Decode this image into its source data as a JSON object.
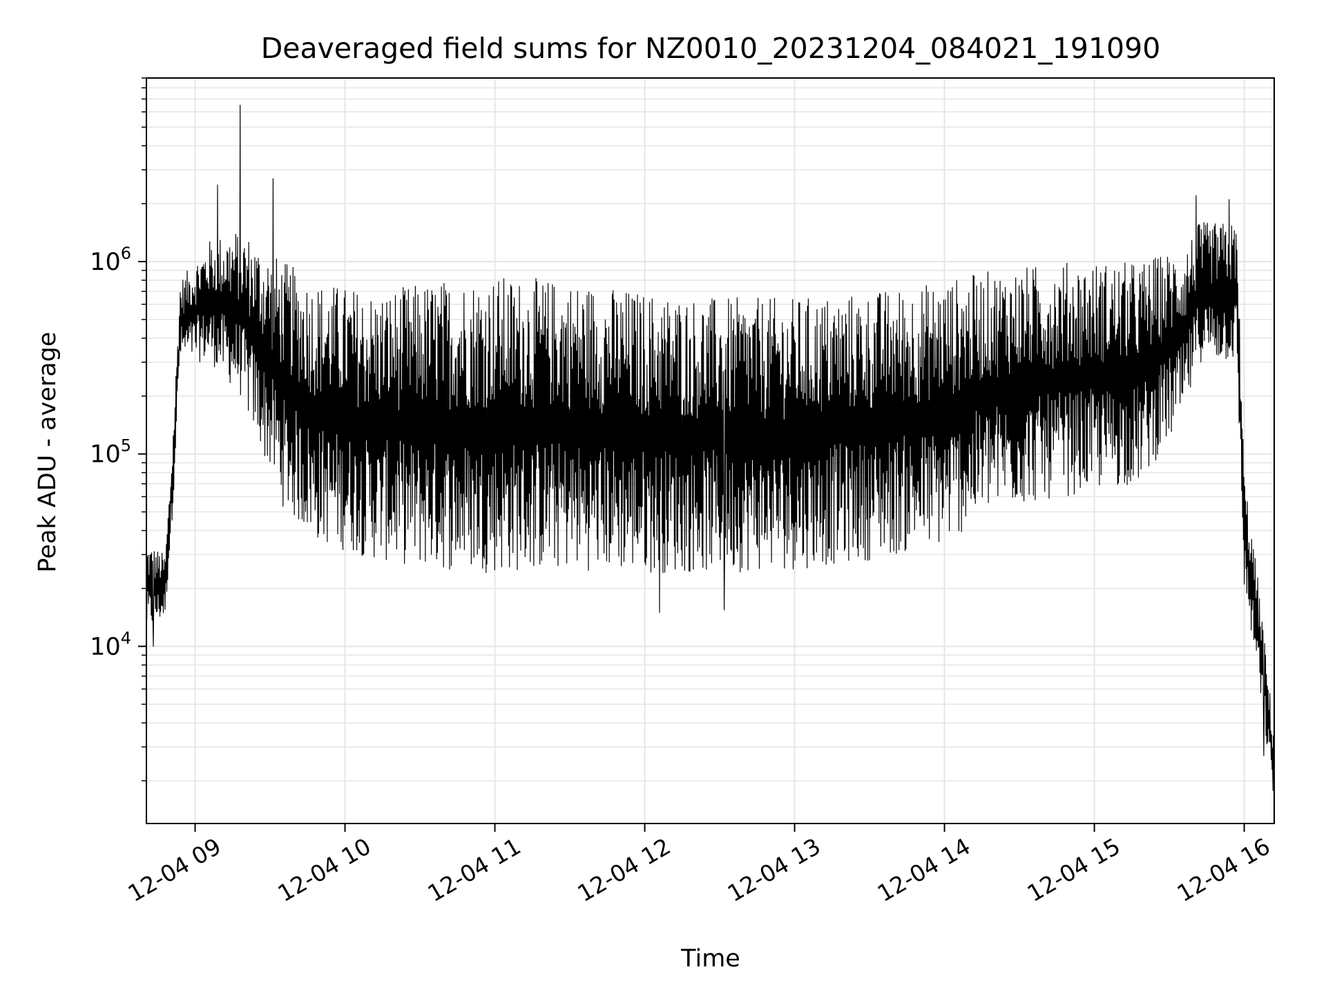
{
  "chart_data": {
    "type": "line",
    "title": "Deaveraged field sums for NZ0010_20231204_084021_191090",
    "xlabel": "Time",
    "ylabel": "Peak ADU - average",
    "x_ticks": [
      "12-04 09",
      "12-04 10",
      "12-04 11",
      "12-04 12",
      "12-04 13",
      "12-04 14",
      "12-04 15",
      "12-04 16"
    ],
    "x_tick_hours": [
      9,
      10,
      11,
      12,
      13,
      14,
      15,
      16
    ],
    "xlim_hours": [
      8.675,
      16.2
    ],
    "y_scale": "log",
    "ylim": [
      1200,
      9000000
    ],
    "y_ticks": [
      {
        "value": 10000,
        "base": "10",
        "exp": "4"
      },
      {
        "value": 100000,
        "base": "10",
        "exp": "5"
      },
      {
        "value": 1000000,
        "base": "10",
        "exp": "6"
      }
    ],
    "grid": true,
    "line_color": "#000000",
    "grid_color": "#e6e6e6",
    "envelope": [
      {
        "hour": 8.675,
        "low": 12000,
        "high": 35000
      },
      {
        "hour": 8.8,
        "low": 14000,
        "high": 30000
      },
      {
        "hour": 8.85,
        "low": 50000,
        "high": 120000
      },
      {
        "hour": 8.9,
        "low": 300000,
        "high": 800000
      },
      {
        "hour": 9.1,
        "low": 300000,
        "high": 1300000
      },
      {
        "hour": 9.3,
        "low": 200000,
        "high": 1500000
      },
      {
        "hour": 9.45,
        "low": 100000,
        "high": 1200000
      },
      {
        "hour": 9.6,
        "low": 50000,
        "high": 1000000
      },
      {
        "hour": 9.8,
        "low": 35000,
        "high": 800000
      },
      {
        "hour": 10.2,
        "low": 28000,
        "high": 700000
      },
      {
        "hour": 10.6,
        "low": 25000,
        "high": 800000
      },
      {
        "hour": 11.0,
        "low": 24000,
        "high": 850000
      },
      {
        "hour": 11.5,
        "low": 25000,
        "high": 800000
      },
      {
        "hour": 12.0,
        "low": 24000,
        "high": 700000
      },
      {
        "hour": 12.5,
        "low": 24000,
        "high": 650000
      },
      {
        "hour": 13.0,
        "low": 25000,
        "high": 650000
      },
      {
        "hour": 13.5,
        "low": 28000,
        "high": 700000
      },
      {
        "hour": 14.0,
        "low": 33000,
        "high": 800000
      },
      {
        "hour": 14.3,
        "low": 50000,
        "high": 900000
      },
      {
        "hour": 14.8,
        "low": 60000,
        "high": 1000000
      },
      {
        "hour": 15.3,
        "low": 70000,
        "high": 1000000
      },
      {
        "hour": 15.6,
        "low": 150000,
        "high": 1200000
      },
      {
        "hour": 15.7,
        "low": 300000,
        "high": 1600000
      },
      {
        "hour": 15.95,
        "low": 300000,
        "high": 1600000
      },
      {
        "hour": 16.0,
        "low": 20000,
        "high": 80000
      },
      {
        "hour": 16.1,
        "low": 6000,
        "high": 20000
      },
      {
        "hour": 16.2,
        "low": 1500,
        "high": 3500
      }
    ],
    "spikes": [
      {
        "hour": 9.3,
        "value": 6500000
      },
      {
        "hour": 9.15,
        "value": 2500000
      },
      {
        "hour": 9.52,
        "value": 2700000
      },
      {
        "hour": 15.68,
        "value": 2200000
      },
      {
        "hour": 15.9,
        "value": 2100000
      },
      {
        "hour": 12.1,
        "value": 15000
      },
      {
        "hour": 12.53,
        "value": 15500
      },
      {
        "hour": 8.72,
        "value": 10000
      },
      {
        "hour": 16.13,
        "value": 2700
      }
    ]
  }
}
